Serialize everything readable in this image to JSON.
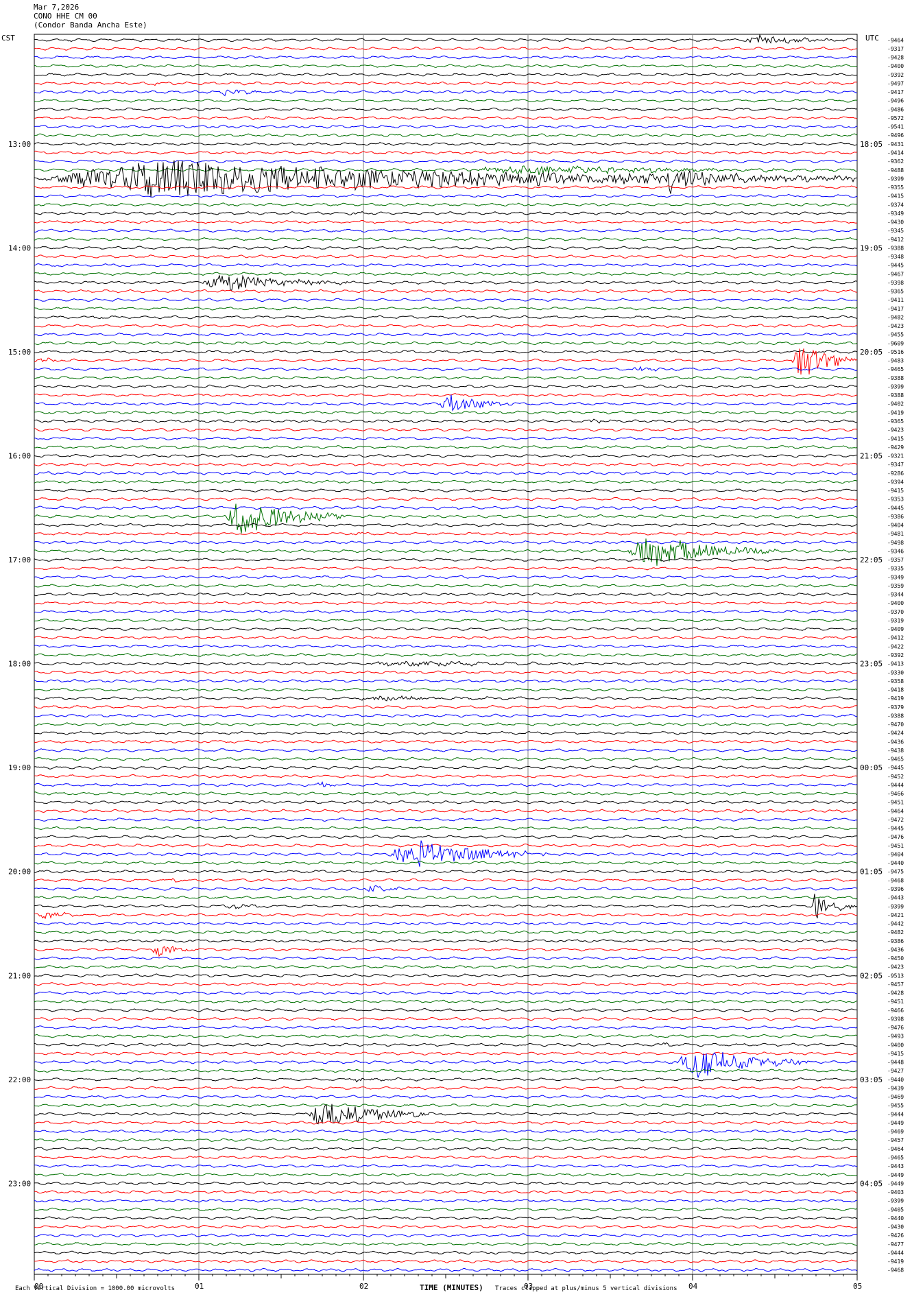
{
  "header": {
    "date": "Mar 7,2026",
    "station": "CONO HHE CM 00",
    "site": "(Condor Banda Ancha Este)"
  },
  "axes": {
    "left_tz": "CST",
    "right_tz": "UTC",
    "xlabel": "TIME (MINUTES)",
    "x_tick_labels": [
      "00",
      "01",
      "02",
      "03",
      "04",
      "05"
    ]
  },
  "footer": {
    "scale_note": "Each Vertical Division = 1000.00 microvolts",
    "clip_note": "Traces clipped at plus/minus 5 vertical divisions"
  },
  "colors": {
    "trace_cycle": [
      "#000000",
      "#ff0000",
      "#0000ff",
      "#007000"
    ],
    "grid": "#808080"
  },
  "chart_data": {
    "type": "line",
    "title": "Mar 7,2026 CONO HHE CM 00 (Condor Banda Ancha Este)",
    "xlabel": "TIME (MINUTES)",
    "xlim": [
      0,
      5
    ],
    "row_minutes": 5,
    "rows_per_hour": 12,
    "left_hour_labels": [
      "13:00",
      "14:00",
      "15:00",
      "16:00",
      "17:00",
      "18:00",
      "19:00",
      "20:00",
      "21:00",
      "22:00",
      "23:00"
    ],
    "right_hour_labels": [
      "18:05",
      "19:05",
      "20:05",
      "21:05",
      "22:05",
      "23:05",
      "00:05",
      "01:05",
      "02:05",
      "03:05",
      "04:05"
    ],
    "first_hour_label_row": 12,
    "trace_mean_values": [
      "-9464",
      "-9317",
      "-9428",
      "-9400",
      "-9392",
      "-9497",
      "-9417",
      "-9496",
      "-9486",
      "-9572",
      "-9541",
      "-9496",
      "-9431",
      "-9414",
      "-9362",
      "-9488",
      "-9399",
      "-9355",
      "-9415",
      "-9374",
      "-9349",
      "-9430",
      "-9345",
      "-9412",
      "-9388",
      "-9348",
      "-9445",
      "-9467",
      "-9398",
      "-9365",
      "-9411",
      "-9417",
      "-9482",
      "-9423",
      "-9455",
      "-9609",
      "-9516",
      "-9483",
      "-9465",
      "-9388",
      "-9399",
      "-9388",
      "-9402",
      "-9419",
      "-9365",
      "-9423",
      "-9415",
      "-9429",
      "-9321",
      "-9347",
      "-9286",
      "-9394",
      "-9415",
      "-9353",
      "-9445",
      "-9386",
      "-9404",
      "-9481",
      "-9498",
      "-9346",
      "-9357",
      "-9335",
      "-9349",
      "-9359",
      "-9344",
      "-9400",
      "-9370",
      "-9319",
      "-9409",
      "-9412",
      "-9422",
      "-9392",
      "-9413",
      "-9330",
      "-9358",
      "-9418",
      "-9419",
      "-9379",
      "-9388",
      "-9470",
      "-9424",
      "-9436",
      "-9438",
      "-9465",
      "-9445",
      "-9452",
      "-9444",
      "-9466",
      "-9451",
      "-9464",
      "-9472",
      "-9445",
      "-9476",
      "-9451",
      "-9404",
      "-9440",
      "-9475",
      "-9468",
      "-9396",
      "-9443",
      "-9399",
      "-9421",
      "-9442",
      "-9482",
      "-9386",
      "-9436",
      "-9450",
      "-9423",
      "-9513",
      "-9457",
      "-9428",
      "-9451",
      "-9466",
      "-9398",
      "-9476",
      "-9493",
      "-9400",
      "-9415",
      "-9448",
      "-9427",
      "-9440",
      "-9439",
      "-9469",
      "-9455",
      "-9444",
      "-9449",
      "-9469",
      "-9457",
      "-9464",
      "-9465",
      "-9443",
      "-9449",
      "-9449",
      "-9403",
      "-9399",
      "-9405",
      "-9440",
      "-9430",
      "-9426",
      "-9477",
      "-9444",
      "-9419",
      "-9468"
    ],
    "events": [
      {
        "row": 0,
        "start_min": 4.3,
        "end_min": 5.0,
        "amplitude_div": 1.2
      },
      {
        "row": 5,
        "start_min": 0.65,
        "end_min": 0.9,
        "amplitude_div": 0.4
      },
      {
        "row": 6,
        "start_min": 1.1,
        "end_min": 1.55,
        "amplitude_div": 0.9
      },
      {
        "row": 9,
        "start_min": 1.3,
        "end_min": 1.5,
        "amplitude_div": 0.3
      },
      {
        "row": 16,
        "start_min": 0.0,
        "end_min": 5.0,
        "amplitude_div": 5.0
      },
      {
        "row": 15,
        "start_min": 2.6,
        "end_min": 5.0,
        "amplitude_div": 1.2
      },
      {
        "row": 16,
        "start_min": 3.8,
        "end_min": 4.3,
        "amplitude_div": 3.5
      },
      {
        "row": 20,
        "start_min": 1.9,
        "end_min": 2.1,
        "amplitude_div": 0.4
      },
      {
        "row": 28,
        "start_min": 1.0,
        "end_min": 1.9,
        "amplitude_div": 2.5
      },
      {
        "row": 32,
        "start_min": 0.35,
        "end_min": 0.55,
        "amplitude_div": 0.4
      },
      {
        "row": 37,
        "start_min": 4.6,
        "end_min": 5.0,
        "amplitude_div": 5.0
      },
      {
        "row": 37,
        "start_min": 0.0,
        "end_min": 0.25,
        "amplitude_div": 0.6
      },
      {
        "row": 38,
        "start_min": 3.6,
        "end_min": 4.0,
        "amplitude_div": 0.6
      },
      {
        "row": 42,
        "start_min": 2.45,
        "end_min": 2.9,
        "amplitude_div": 2.8
      },
      {
        "row": 44,
        "start_min": 3.35,
        "end_min": 3.55,
        "amplitude_div": 0.5
      },
      {
        "row": 55,
        "start_min": 1.15,
        "end_min": 1.9,
        "amplitude_div": 5.0
      },
      {
        "row": 57,
        "start_min": 1.9,
        "end_min": 2.1,
        "amplitude_div": 0.3
      },
      {
        "row": 59,
        "start_min": 3.6,
        "end_min": 4.5,
        "amplitude_div": 4.5
      },
      {
        "row": 72,
        "start_min": 2.0,
        "end_min": 3.6,
        "amplitude_div": 0.6
      },
      {
        "row": 76,
        "start_min": 1.95,
        "end_min": 3.0,
        "amplitude_div": 0.6
      },
      {
        "row": 86,
        "start_min": 1.7,
        "end_min": 1.9,
        "amplitude_div": 0.8
      },
      {
        "row": 94,
        "start_min": 2.15,
        "end_min": 3.1,
        "amplitude_div": 4.0
      },
      {
        "row": 97,
        "start_min": 0.8,
        "end_min": 1.0,
        "amplitude_div": 0.5
      },
      {
        "row": 98,
        "start_min": 2.0,
        "end_min": 2.3,
        "amplitude_div": 0.9
      },
      {
        "row": 100,
        "start_min": 1.15,
        "end_min": 1.45,
        "amplitude_div": 0.6
      },
      {
        "row": 100,
        "start_min": 4.7,
        "end_min": 5.0,
        "amplitude_div": 3.5
      },
      {
        "row": 101,
        "start_min": 0.0,
        "end_min": 0.45,
        "amplitude_div": 0.9
      },
      {
        "row": 105,
        "start_min": 0.7,
        "end_min": 1.0,
        "amplitude_div": 1.8
      },
      {
        "row": 116,
        "start_min": 3.8,
        "end_min": 3.95,
        "amplitude_div": 0.4
      },
      {
        "row": 117,
        "start_min": 3.1,
        "end_min": 3.2,
        "amplitude_div": 0.3
      },
      {
        "row": 118,
        "start_min": 3.9,
        "end_min": 4.7,
        "amplitude_div": 4.5
      },
      {
        "row": 120,
        "start_min": 1.9,
        "end_min": 2.4,
        "amplitude_div": 0.5
      },
      {
        "row": 124,
        "start_min": 1.65,
        "end_min": 2.4,
        "amplitude_div": 4.0
      },
      {
        "row": 131,
        "start_min": 4.75,
        "end_min": 4.9,
        "amplitude_div": 0.4
      }
    ]
  }
}
